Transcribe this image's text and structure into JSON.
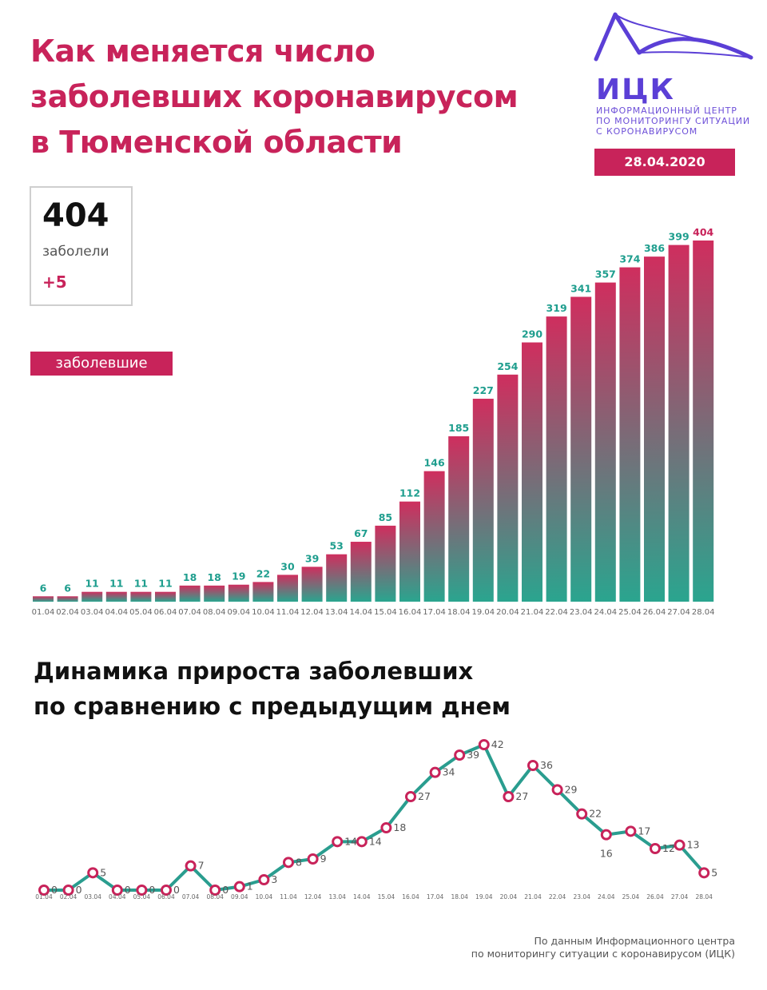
{
  "header": {
    "title_lines": [
      "Как меняется число",
      "заболевших коронавирусом",
      "в Тюменской области"
    ]
  },
  "logo": {
    "name": "ИЦК",
    "subtitle_lines": [
      "ИНФОРМАЦИОННЫЙ ЦЕНТР",
      "ПО МОНИТОРИНГУ СИТУАЦИИ",
      "С КОРОНАВИРУСОМ"
    ],
    "date": "28.04.2020",
    "color": "#5b3fd6"
  },
  "stat": {
    "total": "404",
    "label": "заболели",
    "delta": "+5"
  },
  "legend": {
    "label": "заболевшие"
  },
  "second_title_lines": [
    "Динамика прироста заболевших",
    "по сравнению с предыдущим днем"
  ],
  "source_lines": [
    "По данным Информационного центра",
    "по мониторингу ситуации с коронавирусом (ИЦК)"
  ],
  "colors": {
    "accent": "#c8235a",
    "teal": "#1f9e8e",
    "bar_top": "#cf2e5e",
    "bar_bottom": "#2aa58f",
    "line": "#2a9d8f",
    "marker": "#c8235a"
  },
  "chart_data": [
    {
      "type": "bar",
      "categories": [
        "01.04",
        "02.04",
        "03.04",
        "04.04",
        "05.04",
        "06.04",
        "07.04",
        "08.04",
        "09.04",
        "10.04",
        "11.04",
        "12.04",
        "13.04",
        "14.04",
        "15.04",
        "16.04",
        "17.04",
        "18.04",
        "19.04",
        "20.04",
        "21.04",
        "22.04",
        "23.04",
        "24.04",
        "25.04",
        "26.04",
        "27.04",
        "28.04"
      ],
      "values": [
        6,
        6,
        11,
        11,
        11,
        11,
        18,
        18,
        19,
        22,
        30,
        39,
        53,
        67,
        85,
        112,
        146,
        185,
        227,
        254,
        290,
        319,
        341,
        357,
        374,
        386,
        399,
        404
      ],
      "ylim": [
        0,
        404
      ],
      "grid": false
    },
    {
      "type": "line",
      "categories": [
        "01.04",
        "02.04",
        "03.04",
        "04.04",
        "05.04",
        "06.04",
        "07.04",
        "08.04",
        "09.04",
        "10.04",
        "11.04",
        "12.04",
        "13.04",
        "14.04",
        "15.04",
        "16.04",
        "17.04",
        "18.04",
        "19.04",
        "20.04",
        "21.04",
        "22.04",
        "23.04",
        "24.04",
        "25.04",
        "26.04",
        "27.04",
        "28.04"
      ],
      "values": [
        0,
        0,
        5,
        0,
        0,
        0,
        7,
        0,
        1,
        3,
        8,
        9,
        14,
        14,
        18,
        27,
        34,
        39,
        42,
        27,
        36,
        29,
        22,
        16,
        17,
        12,
        13,
        5
      ],
      "ylim": [
        0,
        42
      ],
      "grid": false
    }
  ]
}
